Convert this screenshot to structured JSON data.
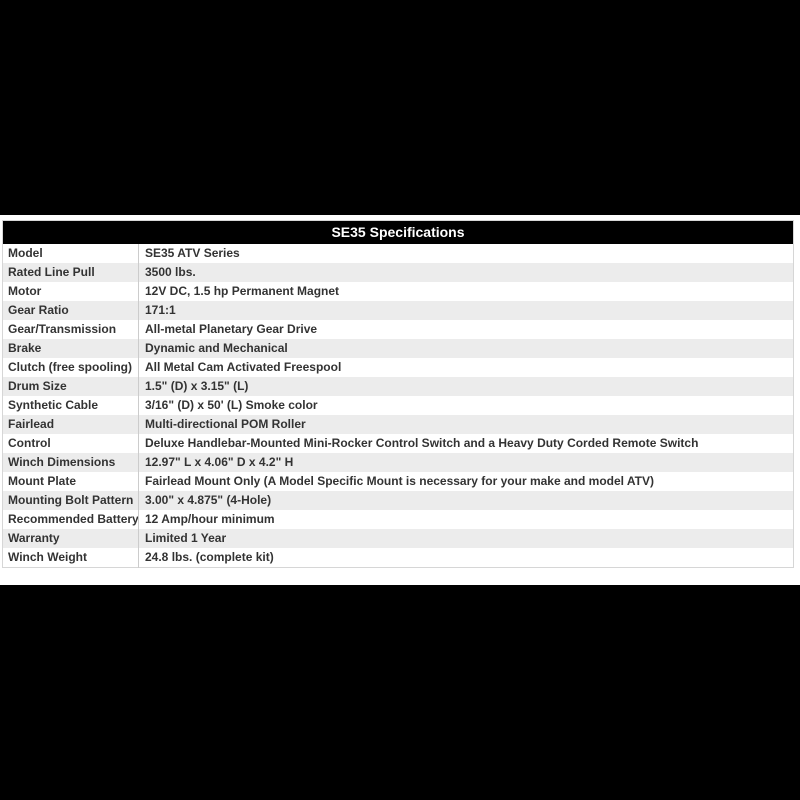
{
  "table": {
    "title": "SE35 Specifications",
    "rows": [
      {
        "label": "Model",
        "value": "SE35 ATV Series"
      },
      {
        "label": "Rated Line Pull",
        "value": "3500 lbs."
      },
      {
        "label": "Motor",
        "value": "12V DC, 1.5 hp Permanent Magnet"
      },
      {
        "label": "Gear Ratio",
        "value": "171:1"
      },
      {
        "label": "Gear/Transmission",
        "value": "All-metal Planetary Gear Drive"
      },
      {
        "label": "Brake",
        "value": "Dynamic and Mechanical"
      },
      {
        "label": "Clutch (free spooling)",
        "value": "All Metal Cam Activated Freespool"
      },
      {
        "label": "Drum Size",
        "value": "1.5\" (D) x 3.15\" (L)"
      },
      {
        "label": "Synthetic Cable",
        "value": "3/16\" (D) x 50' (L) Smoke color"
      },
      {
        "label": "Fairlead",
        "value": "Multi-directional POM Roller"
      },
      {
        "label": "Control",
        "value": "Deluxe Handlebar-Mounted Mini-Rocker Control Switch and a Heavy Duty Corded Remote Switch"
      },
      {
        "label": "Winch Dimensions",
        "value": "12.97\" L x 4.06\" D x 4.2\" H"
      },
      {
        "label": "Mount Plate",
        "value": "Fairlead Mount Only (A Model Specific Mount is necessary for your make and model ATV)"
      },
      {
        "label": "Mounting Bolt Pattern",
        "value": "3.00\" x 4.875\" (4-Hole)"
      },
      {
        "label": "Recommended Battery",
        "value": "12 Amp/hour minimum"
      },
      {
        "label": "Warranty",
        "value": "Limited 1 Year"
      },
      {
        "label": "Winch Weight",
        "value": "24.8 lbs. (complete kit)"
      }
    ]
  },
  "colors": {
    "letterbox": "#000000",
    "header_bg": "#000000",
    "header_text": "#ffffff",
    "row_bg": "#ffffff",
    "row_alt_bg": "#ececec",
    "text": "#333333",
    "border": "#d6d6d6",
    "column_divider": "#cccccc"
  }
}
